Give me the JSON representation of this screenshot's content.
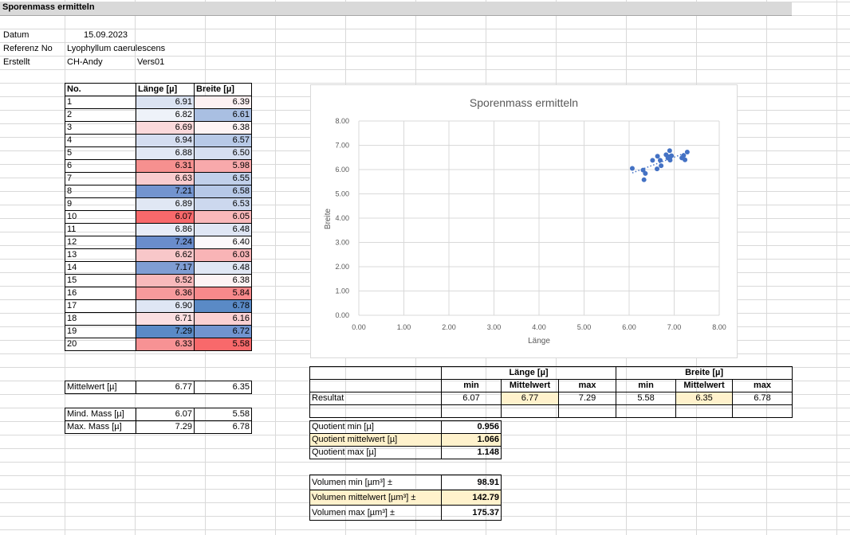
{
  "sheet_title": "Sporenmass ermitteln",
  "info": {
    "datum_label": "Datum",
    "datum_value": "15.09.2023",
    "referenz_label": "Referenz No",
    "referenz_value": "Lyophyllum caerulescens",
    "erstellt_label": "Erstellt",
    "erstellt_value": "CH-Andy",
    "version": "Vers01"
  },
  "measure_table": {
    "headers": [
      "No.",
      "Länge  [µ]",
      "Breite [µ]"
    ],
    "rows": [
      {
        "no": "1",
        "laenge": "6.91",
        "breite": "6.39",
        "lc": "#dbe3f2",
        "bc": "#fdf1f2"
      },
      {
        "no": "2",
        "laenge": "6.82",
        "breite": "6.61",
        "lc": "#eef2f9",
        "bc": "#a9bfe2"
      },
      {
        "no": "3",
        "laenge": "6.69",
        "breite": "6.38",
        "lc": "#fbd9db",
        "bc": "#fdf4f5"
      },
      {
        "no": "4",
        "laenge": "6.94",
        "breite": "6.57",
        "lc": "#d4ddf0",
        "bc": "#b7c9e7"
      },
      {
        "no": "5",
        "laenge": "6.88",
        "breite": "6.50",
        "lc": "#e2e8f5",
        "bc": "#d6dff1"
      },
      {
        "no": "6",
        "laenge": "6.31",
        "breite": "5.98",
        "lc": "#f6908f",
        "bc": "#f8a9ab"
      },
      {
        "no": "7",
        "laenge": "6.63",
        "breite": "6.55",
        "lc": "#f9ccce",
        "bc": "#c1d0ea"
      },
      {
        "no": "8",
        "laenge": "7.21",
        "breite": "6.58",
        "lc": "#7394cf",
        "bc": "#b6c8e7"
      },
      {
        "no": "9",
        "laenge": "6.89",
        "breite": "6.53",
        "lc": "#e0e7f4",
        "bc": "#ccd8ee"
      },
      {
        "no": "10",
        "laenge": "6.07",
        "breite": "6.05",
        "lc": "#f8696b",
        "bc": "#f9b8ba"
      },
      {
        "no": "11",
        "laenge": "6.86",
        "breite": "6.48",
        "lc": "#e7ecf7",
        "bc": "#dfe6f4"
      },
      {
        "no": "12",
        "laenge": "7.24",
        "breite": "6.40",
        "lc": "#6a8dcc",
        "bc": "#fbf9fb"
      },
      {
        "no": "13",
        "laenge": "6.62",
        "breite": "6.03",
        "lc": "#f8c7c9",
        "bc": "#f9b4b6"
      },
      {
        "no": "14",
        "laenge": "7.17",
        "breite": "6.48",
        "lc": "#7f9dd3",
        "bc": "#e0e7f4"
      },
      {
        "no": "15",
        "laenge": "6.52",
        "breite": "6.38",
        "lc": "#f8b9bb",
        "bc": "#fdf3f4"
      },
      {
        "no": "16",
        "laenge": "6.36",
        "breite": "5.84",
        "lc": "#f79a9c",
        "bc": "#f7898b"
      },
      {
        "no": "17",
        "laenge": "6.90",
        "breite": "6.78",
        "lc": "#dfe6f4",
        "bc": "#5a8ac6"
      },
      {
        "no": "18",
        "laenge": "6.71",
        "breite": "6.16",
        "lc": "#fbdfe1",
        "bc": "#fad0d2"
      },
      {
        "no": "19",
        "laenge": "7.29",
        "breite": "6.72",
        "lc": "#5a8ac6",
        "bc": "#7194cf"
      },
      {
        "no": "20",
        "laenge": "6.33",
        "breite": "5.58",
        "lc": "#f79294",
        "bc": "#f8696b"
      }
    ]
  },
  "summary": {
    "mittelwert_label": "Mittelwert  [µ]",
    "mittelwert_laenge": "6.77",
    "mittelwert_breite": "6.35",
    "mind_label": "Mind. Mass  [µ]",
    "mind_laenge": "6.07",
    "mind_breite": "5.58",
    "max_label": "Max. Mass  [µ]",
    "max_laenge": "7.29",
    "max_breite": "6.78"
  },
  "result_table": {
    "laenge_header": "Länge  [µ]",
    "breite_header": "Breite [µ]",
    "sub_min": "min",
    "sub_mittel": "Mittelwert",
    "sub_max": "max",
    "row_label": "Resultat",
    "laenge_min": "6.07",
    "laenge_mittel": "6.77",
    "laenge_max": "7.29",
    "breite_min": "5.58",
    "breite_mittel": "6.35",
    "breite_max": "6.78"
  },
  "quotient": {
    "min_label": "Quotient min  [µ]",
    "min_value": "0.956",
    "mittel_label": "Quotient mittelwert [µ]",
    "mittel_value": "1.066",
    "max_label": "Quotient max  [µ]",
    "max_value": "1.148"
  },
  "volumen": {
    "min_label": "Volumen min [µm³] ±",
    "min_value": "98.91",
    "mittel_label": "Volumen mittelwert [µm³] ±",
    "mittel_value": "142.79",
    "max_label": "Volumen max [µm³] ±",
    "max_value": "175.37"
  },
  "colors": {
    "scatter_point": "#4472c4",
    "highlight": "#fff2cc",
    "header_gray": "#d9d9d9"
  },
  "chart_data": {
    "type": "scatter",
    "title": "Sporenmass ermitteln",
    "xlabel": "Länge",
    "ylabel": "Breite",
    "xlim": [
      0,
      8
    ],
    "ylim": [
      0,
      8
    ],
    "x_ticks": [
      "0.00",
      "1.00",
      "2.00",
      "3.00",
      "4.00",
      "5.00",
      "6.00",
      "7.00",
      "8.00"
    ],
    "y_ticks": [
      "0.00",
      "1.00",
      "2.00",
      "3.00",
      "4.00",
      "5.00",
      "6.00",
      "7.00",
      "8.00"
    ],
    "grid": true,
    "trendline": "linear-dotted",
    "x": [
      6.91,
      6.82,
      6.69,
      6.94,
      6.88,
      6.31,
      6.63,
      7.21,
      6.89,
      6.07,
      6.86,
      7.24,
      6.62,
      7.17,
      6.52,
      6.36,
      6.9,
      6.71,
      7.29,
      6.33
    ],
    "y": [
      6.39,
      6.61,
      6.38,
      6.57,
      6.5,
      5.98,
      6.55,
      6.58,
      6.53,
      6.05,
      6.48,
      6.4,
      6.03,
      6.48,
      6.38,
      5.84,
      6.78,
      6.16,
      6.72,
      5.58
    ]
  }
}
